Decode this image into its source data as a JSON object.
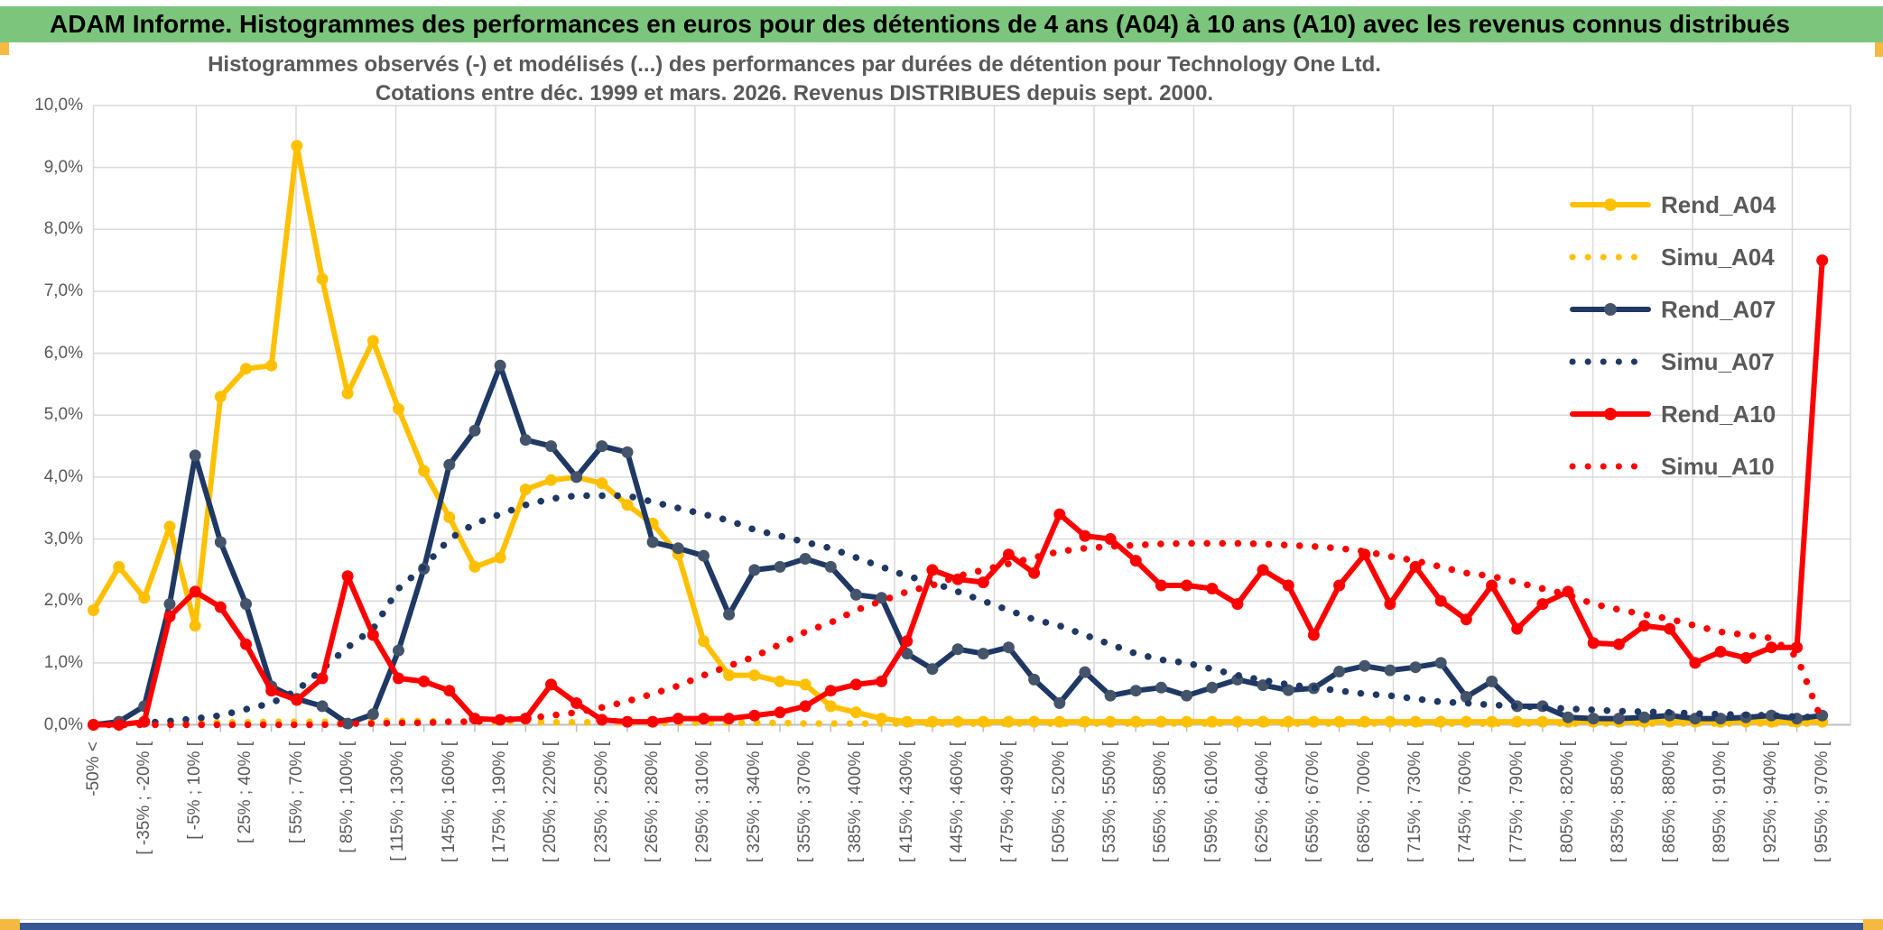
{
  "window": {
    "title": "ADAM Informe. Histogrammes des performances en euros pour des détentions de 4 ans (A04) à 10 ans (A10) avec les revenus connus distribués",
    "title_bar_color": "#7cc57c",
    "bottom_bar_color": "#3a5795",
    "accent_color": "#f4b940"
  },
  "chart": {
    "title_line1": "Histogrammes observés (-) et modélisés (...) des performances par durées de détention pour Technology One Ltd.",
    "title_line2": "Cotations entre déc. 1999 et mars. 2026. Revenus DISTRIBUES depuis sept. 2000.",
    "text_color": "#595959",
    "grid_color": "#d9d9d9"
  },
  "chart_data": {
    "type": "line",
    "points_count": 69,
    "note_labels_every_other_point": true,
    "ylim": [
      0,
      10
    ],
    "y_tick_labels": [
      "10,0%",
      "9,0%",
      "8,0%",
      "7,0%",
      "6,0%",
      "5,0%",
      "4,0%",
      "3,0%",
      "2,0%",
      "1,0%",
      "0,0%"
    ],
    "x_tick_labels": [
      "-50% <",
      "[ -35% ; -20% [",
      "[ -5% ; 10% [",
      "[ 25% ; 40% [",
      "[ 55% ; 70% [",
      "[ 85% ; 100% [",
      "[ 115% ; 130% [",
      "[ 145% ; 160% [",
      "[ 175% ; 190% [",
      "[ 205% ; 220% [",
      "[ 235% ; 250% [",
      "[ 265% ; 280% [",
      "[ 295% ; 310% [",
      "[ 325% ; 340% [",
      "[ 355% ; 370% [",
      "[ 385% ; 400% [",
      "[ 415% ; 430% [",
      "[ 445% ; 460% [",
      "[ 475% ; 490% [",
      "[ 505% ; 520% [",
      "[ 535% ; 550% [",
      "[ 565% ; 580% [",
      "[ 595% ; 610% [",
      "[ 625% ; 640% [",
      "[ 655% ; 670% [",
      "[ 685% ; 700% [",
      "[ 715% ; 730% [",
      "[ 745% ; 760% [",
      "[ 775% ; 790% [",
      "[ 805% ; 820% [",
      "[ 835% ; 850% [",
      "[ 865% ; 880% [",
      "[ 895% ; 910% [",
      "[ 925% ; 940% [",
      "[ 955% ; 970% ["
    ],
    "legend_position": "right",
    "series": [
      {
        "name": "Rend_A04",
        "color": "#ffc000",
        "marker_color": "#ffc000",
        "line": "solid",
        "markers": true,
        "values": [
          1.85,
          2.55,
          2.05,
          3.2,
          1.6,
          5.3,
          5.75,
          5.8,
          9.35,
          7.2,
          5.35,
          6.2,
          5.1,
          4.1,
          3.35,
          2.55,
          2.7,
          3.8,
          3.95,
          4.0,
          3.9,
          3.55,
          3.25,
          2.75,
          1.35,
          0.8,
          0.8,
          0.7,
          0.65,
          0.3,
          0.2,
          0.1,
          0.05,
          0.05,
          0.05,
          0.05,
          0.05,
          0.05,
          0.05,
          0.05,
          0.05,
          0.05,
          0.05,
          0.05,
          0.05,
          0.05,
          0.05,
          0.05,
          0.05,
          0.05,
          0.05,
          0.05,
          0.05,
          0.05,
          0.05,
          0.05,
          0.05,
          0.05,
          0.05,
          0.05,
          0.05,
          0.05,
          0.05,
          0.05,
          0.05,
          0.05,
          0.05,
          0.05,
          0.05
        ]
      },
      {
        "name": "Simu_A04",
        "color": "#ffc000",
        "line": "dotted",
        "markers": false,
        "values": [
          0.01,
          0.01,
          0.02,
          0.02,
          0.03,
          0.04,
          0.04,
          0.05,
          0.05,
          0.05,
          0.05,
          0.06,
          0.06,
          0.06,
          0.05,
          0.05,
          0.05,
          0.05,
          0.04,
          0.04,
          0.04,
          0.04,
          0.03,
          0.03,
          0.03,
          0.03,
          0.03,
          0.03,
          0.02,
          0.02,
          0.02,
          0.02,
          0.02,
          0.02,
          0.02,
          0.02,
          0.02,
          0.02,
          0.02,
          0.02,
          0.02,
          0.02,
          0.02,
          0.02,
          0.02,
          0.02,
          0.02,
          0.02,
          0.02,
          0.02,
          0.02,
          0.02,
          0.02,
          0.02,
          0.02,
          0.02,
          0.02,
          0.02,
          0.02,
          0.02,
          0.02,
          0.02,
          0.02,
          0.02,
          0.02,
          0.02,
          0.02,
          0.02,
          0.02
        ]
      },
      {
        "name": "Rend_A07",
        "color": "#1f3864",
        "marker_color": "#44546a",
        "line": "solid",
        "markers": true,
        "values": [
          0.0,
          0.05,
          0.3,
          1.95,
          4.35,
          2.95,
          1.95,
          0.62,
          0.42,
          0.3,
          0.02,
          0.17,
          1.2,
          2.52,
          4.2,
          4.75,
          5.8,
          4.6,
          4.5,
          4.0,
          4.5,
          4.4,
          2.95,
          2.85,
          2.73,
          1.78,
          2.5,
          2.55,
          2.68,
          2.55,
          2.1,
          2.05,
          1.15,
          0.9,
          1.22,
          1.15,
          1.25,
          0.73,
          0.35,
          0.85,
          0.47,
          0.55,
          0.6,
          0.47,
          0.6,
          0.73,
          0.64,
          0.56,
          0.59,
          0.86,
          0.95,
          0.88,
          0.93,
          1.0,
          0.45,
          0.7,
          0.3,
          0.3,
          0.12,
          0.1,
          0.1,
          0.12,
          0.15,
          0.1,
          0.1,
          0.12,
          0.15,
          0.1,
          0.15
        ]
      },
      {
        "name": "Simu_A07",
        "color": "#1f3864",
        "line": "dotted",
        "markers": false,
        "values": [
          0.0,
          0.01,
          0.03,
          0.06,
          0.1,
          0.15,
          0.25,
          0.35,
          0.55,
          0.9,
          1.25,
          1.55,
          2.2,
          2.55,
          3.0,
          3.25,
          3.4,
          3.55,
          3.65,
          3.7,
          3.7,
          3.7,
          3.6,
          3.5,
          3.4,
          3.3,
          3.15,
          3.05,
          2.95,
          2.85,
          2.7,
          2.55,
          2.4,
          2.3,
          2.15,
          2.0,
          1.85,
          1.7,
          1.6,
          1.45,
          1.3,
          1.15,
          1.05,
          1.0,
          0.9,
          0.8,
          0.72,
          0.65,
          0.6,
          0.55,
          0.5,
          0.47,
          0.42,
          0.37,
          0.35,
          0.32,
          0.3,
          0.28,
          0.26,
          0.24,
          0.22,
          0.21,
          0.2,
          0.18,
          0.17,
          0.16,
          0.15,
          0.13,
          0.12
        ]
      },
      {
        "name": "Rend_A10",
        "color": "#ff0000",
        "marker_color": "#ff0000",
        "line": "solid",
        "markers": true,
        "values": [
          0.0,
          0.0,
          0.05,
          1.75,
          2.15,
          1.9,
          1.3,
          0.55,
          0.4,
          0.75,
          2.4,
          1.45,
          0.75,
          0.7,
          0.55,
          0.1,
          0.08,
          0.1,
          0.65,
          0.35,
          0.08,
          0.05,
          0.05,
          0.1,
          0.1,
          0.1,
          0.15,
          0.2,
          0.3,
          0.55,
          0.65,
          0.7,
          1.35,
          2.5,
          2.35,
          2.3,
          2.75,
          2.45,
          3.4,
          3.05,
          3.0,
          2.65,
          2.25,
          2.25,
          2.2,
          1.95,
          2.5,
          2.25,
          1.45,
          2.25,
          2.75,
          1.95,
          2.55,
          2.0,
          1.7,
          2.25,
          1.55,
          1.95,
          2.15,
          1.32,
          1.3,
          1.6,
          1.55,
          1.0,
          1.18,
          1.08,
          1.25,
          1.25,
          7.5
        ]
      },
      {
        "name": "Simu_A10",
        "color": "#ff0000",
        "line": "dotted",
        "markers": false,
        "values": [
          0,
          0,
          0,
          0,
          0,
          0,
          0,
          0,
          0,
          0,
          0.02,
          0.02,
          0.03,
          0.03,
          0.05,
          0.05,
          0.08,
          0.1,
          0.15,
          0.2,
          0.28,
          0.38,
          0.5,
          0.63,
          0.8,
          0.95,
          1.1,
          1.3,
          1.5,
          1.65,
          1.85,
          2.0,
          2.15,
          2.25,
          2.4,
          2.5,
          2.6,
          2.7,
          2.8,
          2.85,
          2.88,
          2.9,
          2.92,
          2.93,
          2.93,
          2.93,
          2.92,
          2.9,
          2.88,
          2.85,
          2.8,
          2.72,
          2.65,
          2.55,
          2.45,
          2.4,
          2.3,
          2.2,
          2.1,
          1.95,
          1.86,
          1.78,
          1.71,
          1.6,
          1.5,
          1.45,
          1.4,
          1.1,
          0.05
        ]
      }
    ]
  }
}
